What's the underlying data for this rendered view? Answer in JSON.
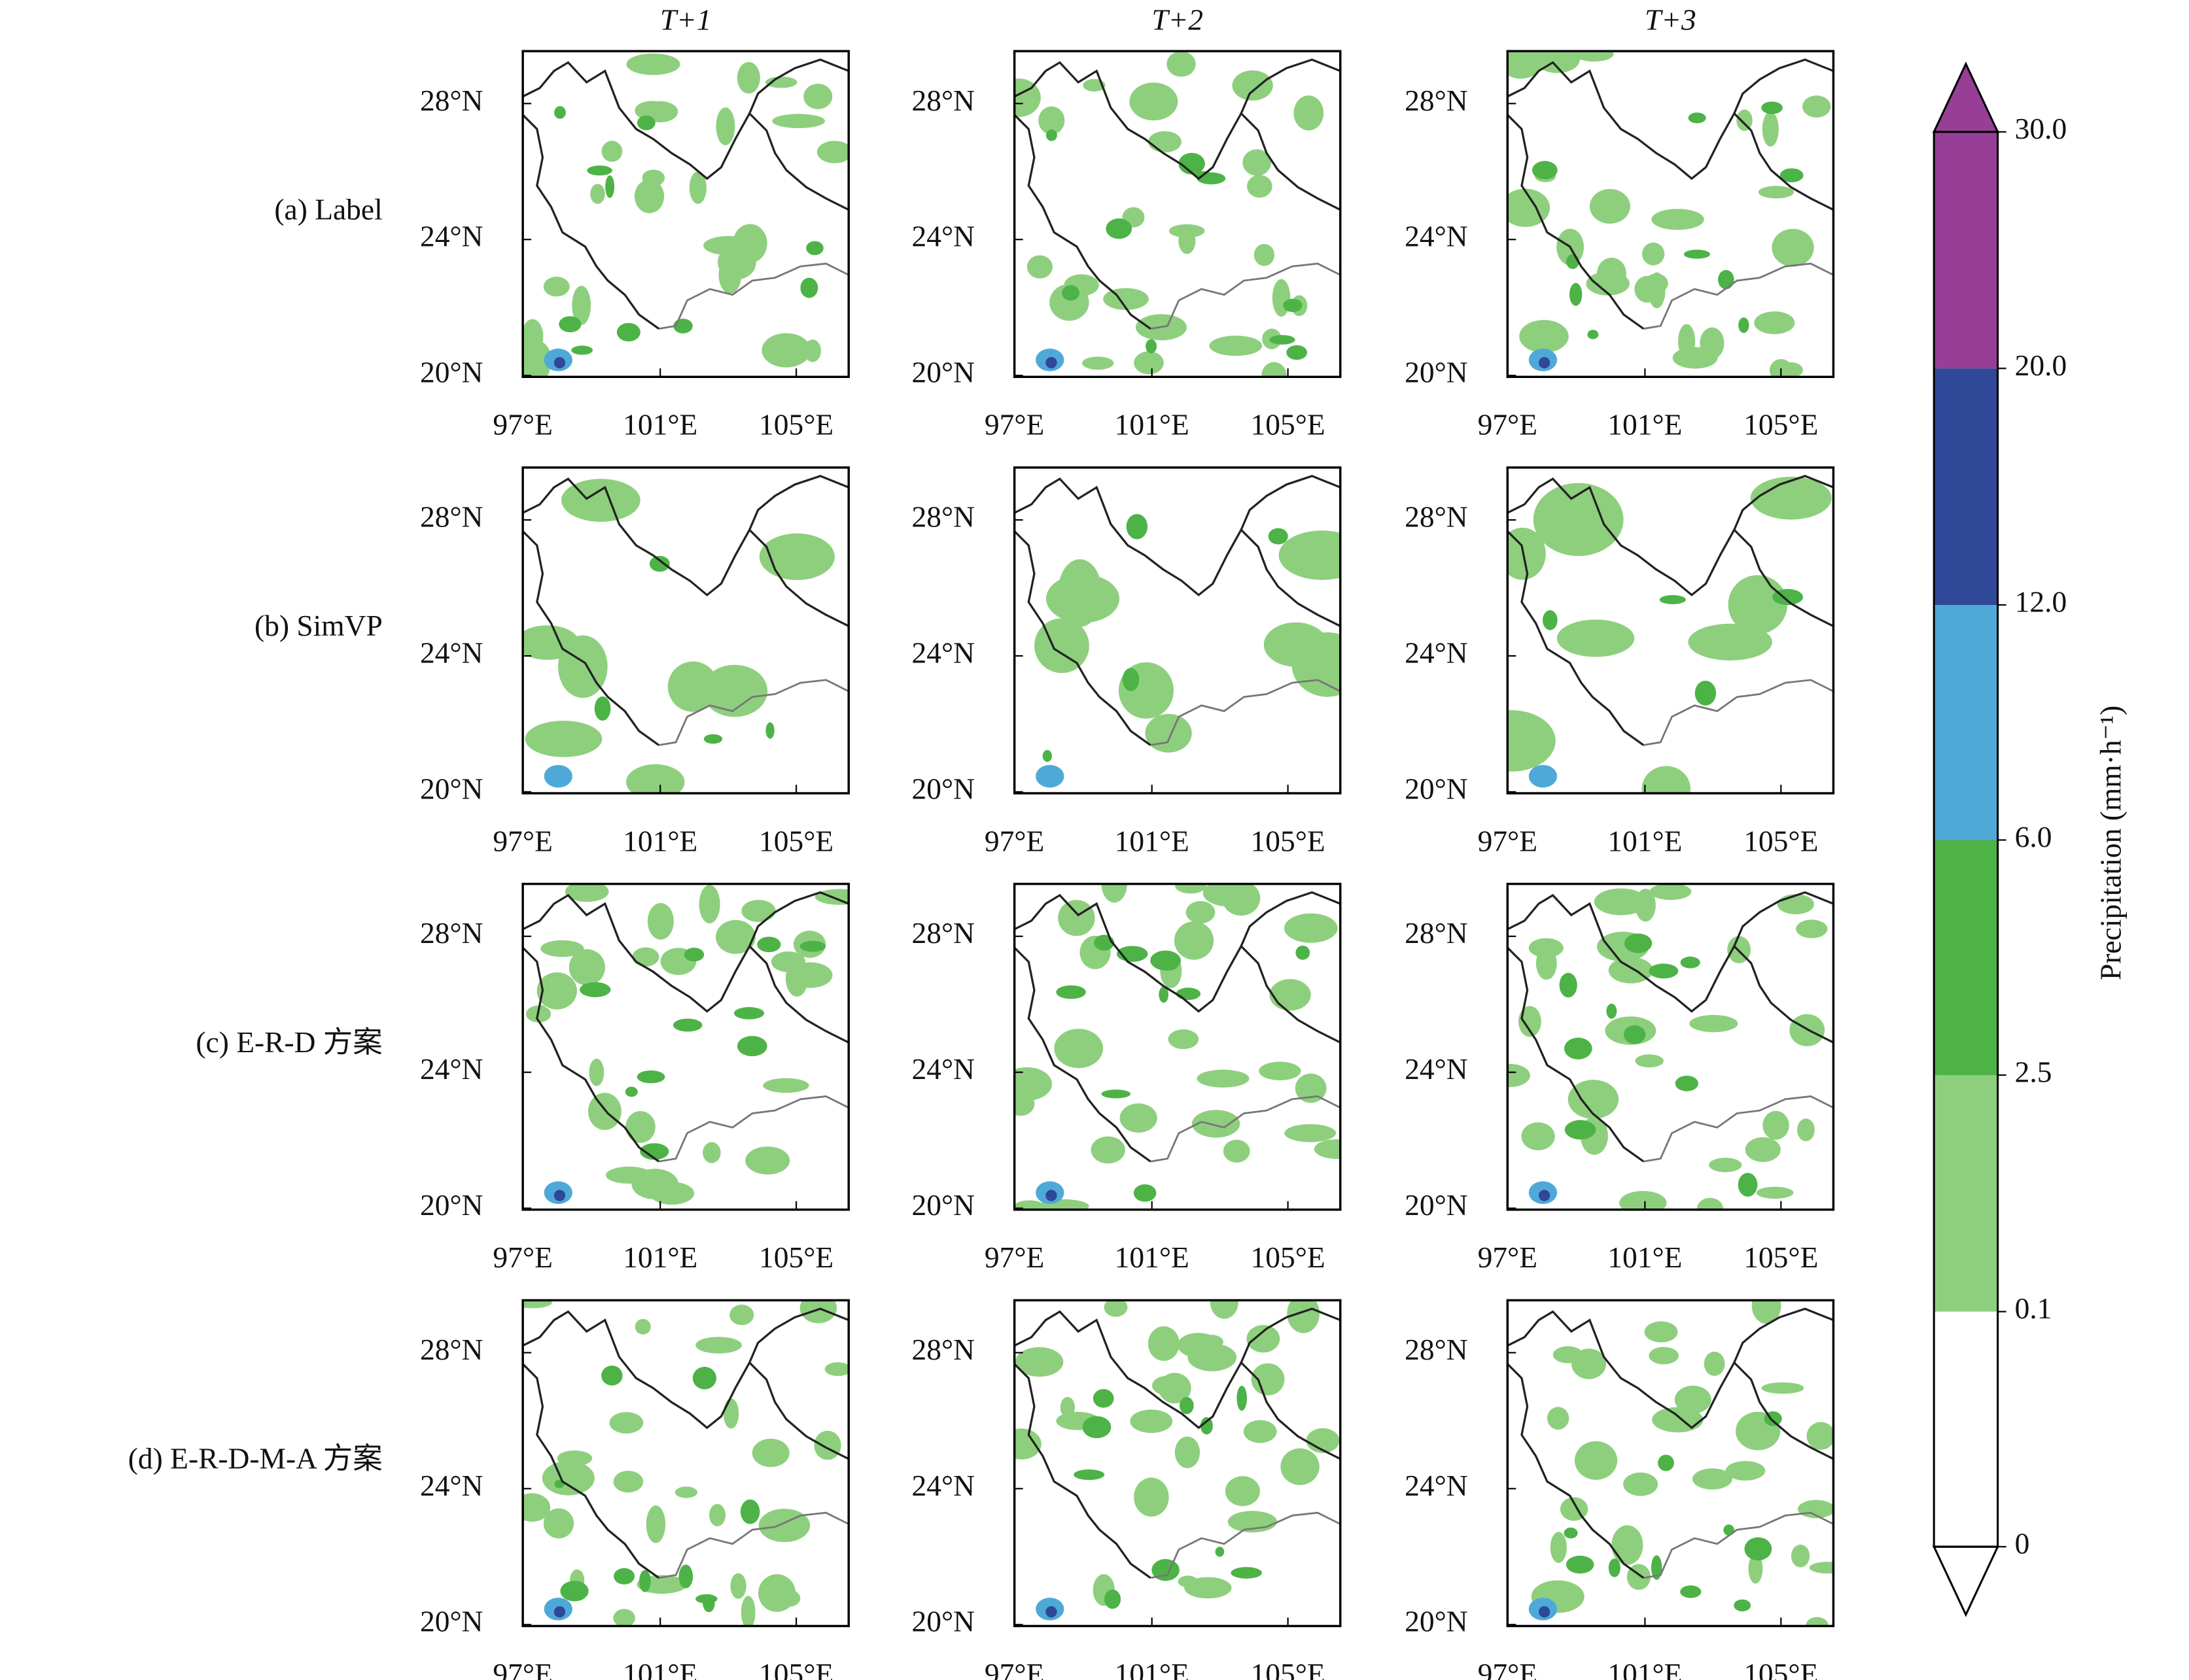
{
  "columns": [
    "T+1",
    "T+2",
    "T+3"
  ],
  "rows": [
    "(a) Label",
    "(b) SimVP",
    "(c) E-R-D 方案",
    "(d) E-R-D-M-A 方案"
  ],
  "lat_ticks": [
    "28°N",
    "24°N",
    "20°N"
  ],
  "lon_ticks": [
    "97°E",
    "101°E",
    "105°E"
  ],
  "colorbar": {
    "label": "Precipitation (mm·h⁻¹)",
    "levels": [
      {
        "value": 0,
        "label": "0"
      },
      {
        "value": 0.1,
        "label": "0.1"
      },
      {
        "value": 2.5,
        "label": "2.5"
      },
      {
        "value": 6,
        "label": "6.0"
      },
      {
        "value": 12,
        "label": "12.0"
      },
      {
        "value": 20,
        "label": "20.0"
      },
      {
        "value": 30,
        "label": "30.0"
      }
    ],
    "colors": [
      "#ffffff",
      "#8ecf7e",
      "#4db347",
      "#4fa9d8",
      "#2f4897",
      "#973e96"
    ]
  }
}
